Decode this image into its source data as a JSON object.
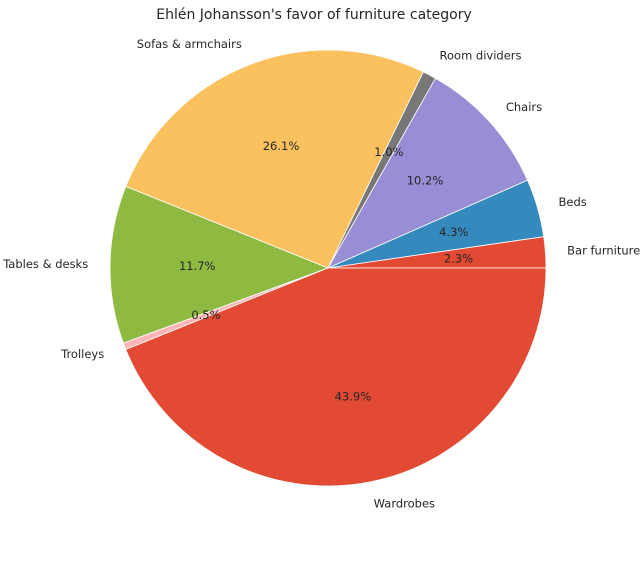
{
  "chart_data": {
    "type": "pie",
    "title": "Ehlén Johansson's favor of furniture category",
    "start_angle_deg": 0,
    "direction": "counterclockwise",
    "slices": [
      {
        "label": "Bar furniture",
        "value": 2.3,
        "pct_label": "2.3%",
        "color": "#E24A33"
      },
      {
        "label": "Beds",
        "value": 4.3,
        "pct_label": "4.3%",
        "color": "#348ABD"
      },
      {
        "label": "Chairs",
        "value": 10.2,
        "pct_label": "10.2%",
        "color": "#988ED5"
      },
      {
        "label": "Room dividers",
        "value": 1.0,
        "pct_label": "1.0%",
        "color": "#777777"
      },
      {
        "label": "Sofas & armchairs",
        "value": 26.1,
        "pct_label": "26.1%",
        "color": "#FBC15E"
      },
      {
        "label": "Tables & desks",
        "value": 11.7,
        "pct_label": "11.7%",
        "color": "#8EBA42"
      },
      {
        "label": "Trolleys",
        "value": 0.5,
        "pct_label": "0.5%",
        "color": "#FFB5B8"
      },
      {
        "label": "Wardrobes",
        "value": 43.9,
        "pct_label": "43.9%",
        "color": "#E24A33"
      }
    ]
  }
}
